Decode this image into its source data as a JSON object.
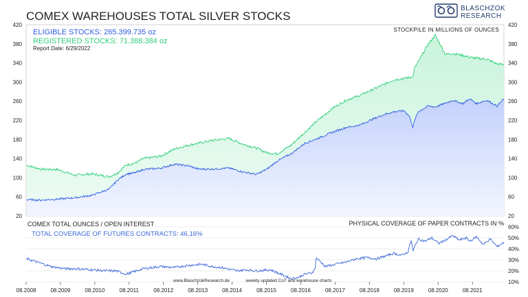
{
  "title": "COMEX WAREHOUSES TOTAL SILVER STOCKS",
  "logo": {
    "line1": "BLASCHZOK",
    "line2": "RESEARCH",
    "icon": "bull-and-bear-icon",
    "color": "#1f3a6b"
  },
  "colors": {
    "eligible": "#2e5be0",
    "registered": "#2fcf7a",
    "coverage": "#3a66d8",
    "grid": "#d9d9d9",
    "text": "#222222"
  },
  "top_panel": {
    "legend_eligible": "ELIGIBLE STOCKS: 265.399.735 oz",
    "legend_registered": "REGISTERED STOCKS: 71.388.384 oz",
    "report_date": "Report Date: 6/29/2022",
    "units_label": "STOCKPILE IN MILLIONS OF OUNCES"
  },
  "bottom_panel": {
    "left_label": "COMEX TOTAL OUNCES / OPEN INTEREST",
    "right_label": "PHYSICAL COVERAGE OF PAPER CONTRACTS IN %",
    "legend": "TOTAL COVERAGE OF FUTURES CONTRACTS: 46,16%",
    "footer_site": "www.BlaschzokResearch.de",
    "footer_note": "weekly updated CoT and warehouse charts"
  },
  "chart_data": [
    {
      "type": "area",
      "title": "COMEX WAREHOUSES TOTAL SILVER STOCKS",
      "ylabel": "STOCKPILE IN MILLIONS OF OUNCES",
      "ylim": [
        20,
        420
      ],
      "yticks": [
        20,
        60,
        100,
        140,
        180,
        220,
        260,
        300,
        340,
        380,
        420
      ],
      "xlim": [
        2008.583,
        2022.5
      ],
      "grid": false,
      "legend_position": "top-left",
      "series": [
        {
          "name": "ELIGIBLE STOCKS",
          "x": [
            2008.6,
            2009.0,
            2009.5,
            2010.0,
            2010.5,
            2011.0,
            2011.25,
            2011.5,
            2011.75,
            2012.0,
            2012.5,
            2012.9,
            2013.3,
            2013.6,
            2014.0,
            2014.5,
            2014.9,
            2015.3,
            2015.6,
            2015.9,
            2016.3,
            2016.7,
            2017.0,
            2017.5,
            2017.9,
            2018.3,
            2018.6,
            2019.0,
            2019.3,
            2019.6,
            2019.75,
            2019.85,
            2019.9,
            2020.0,
            2020.3,
            2020.5,
            2020.8,
            2021.0,
            2021.3,
            2021.5,
            2021.7,
            2022.0,
            2022.3,
            2022.5
          ],
          "values": [
            54,
            53,
            55,
            58,
            63,
            76,
            95,
            108,
            110,
            117,
            120,
            128,
            125,
            118,
            118,
            120,
            112,
            107,
            118,
            135,
            150,
            172,
            180,
            195,
            205,
            210,
            220,
            232,
            238,
            240,
            228,
            205,
            220,
            238,
            250,
            248,
            256,
            262,
            255,
            265,
            255,
            262,
            250,
            265
          ]
        },
        {
          "name": "REGISTERED STOCKS",
          "x": [
            2008.6,
            2009.0,
            2009.5,
            2010.0,
            2010.5,
            2011.0,
            2011.25,
            2011.5,
            2011.75,
            2012.0,
            2012.5,
            2012.9,
            2013.3,
            2013.6,
            2014.0,
            2014.5,
            2014.9,
            2015.3,
            2015.6,
            2015.9,
            2016.3,
            2016.7,
            2017.0,
            2017.5,
            2017.9,
            2018.3,
            2018.6,
            2019.0,
            2019.3,
            2019.6,
            2019.75,
            2019.85,
            2019.9,
            2020.0,
            2020.3,
            2020.5,
            2020.8,
            2021.0,
            2021.3,
            2021.5,
            2021.7,
            2022.0,
            2022.3,
            2022.5
          ],
          "values": [
            126,
            118,
            117,
            105,
            108,
            102,
            110,
            127,
            130,
            140,
            145,
            160,
            168,
            172,
            178,
            182,
            170,
            162,
            152,
            150,
            168,
            195,
            215,
            245,
            262,
            272,
            282,
            295,
            305,
            308,
            310,
            312,
            330,
            342,
            380,
            398,
            358,
            360,
            356,
            352,
            350,
            348,
            338,
            337
          ]
        }
      ]
    },
    {
      "type": "line",
      "title": "COMEX TOTAL OUNCES / OPEN INTEREST",
      "ylabel": "PHYSICAL COVERAGE OF PAPER CONTRACTS IN %",
      "ylim": [
        10,
        60
      ],
      "yticks": [
        "10%",
        "20%",
        "30%",
        "40%",
        "50%",
        "60%"
      ],
      "xticks": [
        "08.2008",
        "08.2009",
        "08.2010",
        "08.2011",
        "08.2012",
        "08.2013",
        "08.2014",
        "08.2015",
        "08.2016",
        "08.2017",
        "08.2018",
        "08.2019",
        "08.2020",
        "08.2021"
      ],
      "xlim": [
        2008.583,
        2022.5
      ],
      "series": [
        {
          "name": "TOTAL COVERAGE OF FUTURES CONTRACTS",
          "x": [
            2008.6,
            2008.9,
            2009.3,
            2009.7,
            2010.0,
            2010.5,
            2010.9,
            2011.2,
            2011.5,
            2011.8,
            2012.0,
            2012.5,
            2012.9,
            2013.3,
            2013.7,
            2014.0,
            2014.3,
            2014.7,
            2015.0,
            2015.3,
            2015.7,
            2016.0,
            2016.3,
            2016.5,
            2016.7,
            2016.9,
            2017.0,
            2017.03,
            2017.3,
            2017.6,
            2017.9,
            2018.2,
            2018.5,
            2018.8,
            2019.0,
            2019.3,
            2019.5,
            2019.7,
            2019.8,
            2019.85,
            2020.0,
            2020.2,
            2020.4,
            2020.6,
            2020.8,
            2021.0,
            2021.2,
            2021.4,
            2021.5,
            2021.7,
            2021.9,
            2022.1,
            2022.3,
            2022.5
          ],
          "values": [
            31,
            28,
            24,
            22,
            22,
            21,
            20,
            20,
            17,
            20,
            22,
            24,
            23,
            25,
            26,
            24,
            23,
            20,
            21,
            20,
            21,
            17,
            13,
            14,
            17,
            18,
            22,
            32,
            24,
            26,
            28,
            31,
            32,
            31,
            33,
            36,
            34,
            37,
            48,
            38,
            49,
            47,
            50,
            45,
            48,
            52,
            48,
            50,
            47,
            51,
            44,
            49,
            42,
            46
          ]
        }
      ]
    }
  ]
}
